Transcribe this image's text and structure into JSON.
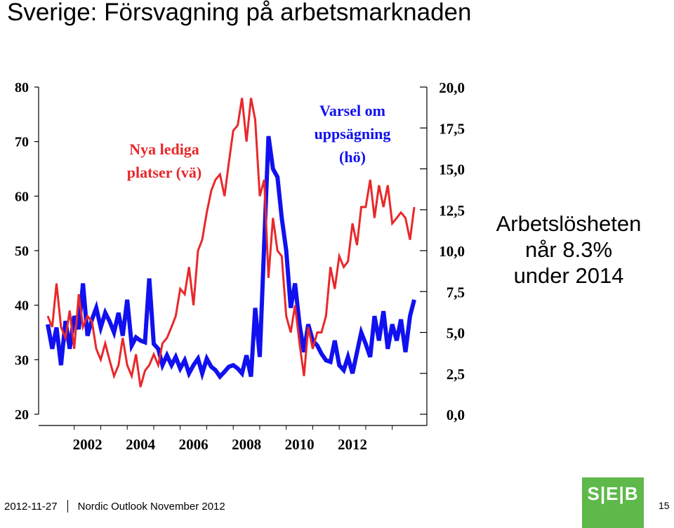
{
  "header": {
    "title": "Sverige: Försvagning på arbetsmarknaden"
  },
  "annotation": {
    "line1": "Arbetslösheten",
    "line2": "når 8.3%",
    "line3": "under 2014"
  },
  "footer": {
    "date": "2012-11-27",
    "publication": "Nordic Outlook November 2012",
    "page": "15"
  },
  "logo": {
    "text": "S|E|B"
  },
  "colors": {
    "lediga": "#e8282b",
    "varsel": "#1010f0",
    "brand": "#5eb94a"
  },
  "chart_data": {
    "type": "line",
    "x_tick_labels": [
      "2002",
      "2004",
      "2006",
      "2008",
      "2010",
      "2012"
    ],
    "left_axis": {
      "ylim": [
        20,
        80
      ],
      "ticks": [
        "20",
        "30",
        "40",
        "50",
        "60",
        "70",
        "80"
      ]
    },
    "right_axis": {
      "ylim": [
        0,
        20
      ],
      "ticks": [
        "0,0",
        "2,5",
        "5,0",
        "7,5",
        "10,0",
        "12,5",
        "15,0",
        "17,5",
        "20,0"
      ]
    },
    "series": [
      {
        "name": "Nya lediga platser (vä)",
        "label_line1": "Nya lediga",
        "label_line2": "platser (vä)",
        "axis": "left",
        "color": "#e8282b",
        "points": [
          [
            2001.0,
            38
          ],
          [
            2001.17,
            36
          ],
          [
            2001.33,
            44
          ],
          [
            2001.5,
            36
          ],
          [
            2001.67,
            34
          ],
          [
            2001.83,
            39
          ],
          [
            2002.0,
            32
          ],
          [
            2002.17,
            42
          ],
          [
            2002.33,
            36
          ],
          [
            2002.5,
            38
          ],
          [
            2002.67,
            37
          ],
          [
            2002.83,
            32
          ],
          [
            2003.0,
            30
          ],
          [
            2003.17,
            33
          ],
          [
            2003.33,
            30
          ],
          [
            2003.5,
            27
          ],
          [
            2003.67,
            29
          ],
          [
            2003.83,
            34
          ],
          [
            2004.0,
            29
          ],
          [
            2004.17,
            27
          ],
          [
            2004.33,
            31
          ],
          [
            2004.5,
            25
          ],
          [
            2004.67,
            28
          ],
          [
            2004.83,
            29
          ],
          [
            2005.0,
            31
          ],
          [
            2005.17,
            29
          ],
          [
            2005.33,
            33
          ],
          [
            2005.5,
            34
          ],
          [
            2005.67,
            36
          ],
          [
            2005.83,
            38
          ],
          [
            2006.0,
            43
          ],
          [
            2006.17,
            42
          ],
          [
            2006.33,
            47
          ],
          [
            2006.5,
            40
          ],
          [
            2006.67,
            50
          ],
          [
            2006.83,
            52
          ],
          [
            2007.0,
            57
          ],
          [
            2007.17,
            61
          ],
          [
            2007.33,
            63
          ],
          [
            2007.5,
            64
          ],
          [
            2007.67,
            60
          ],
          [
            2007.83,
            66
          ],
          [
            2008.0,
            72
          ],
          [
            2008.17,
            73
          ],
          [
            2008.33,
            78
          ],
          [
            2008.5,
            70
          ],
          [
            2008.67,
            78
          ],
          [
            2008.83,
            74
          ],
          [
            2009.0,
            60
          ],
          [
            2009.17,
            63
          ],
          [
            2009.33,
            45
          ],
          [
            2009.5,
            56
          ],
          [
            2009.67,
            50
          ],
          [
            2009.83,
            49
          ],
          [
            2010.0,
            38
          ],
          [
            2010.17,
            35
          ],
          [
            2010.33,
            40
          ],
          [
            2010.5,
            33
          ],
          [
            2010.67,
            27
          ],
          [
            2010.83,
            36
          ],
          [
            2011.0,
            32
          ],
          [
            2011.17,
            35
          ],
          [
            2011.33,
            35
          ],
          [
            2011.5,
            38
          ],
          [
            2011.67,
            47
          ],
          [
            2011.83,
            43
          ],
          [
            2012.0,
            49
          ],
          [
            2012.17,
            47
          ],
          [
            2012.33,
            48
          ],
          [
            2012.5,
            55
          ],
          [
            2012.67,
            51
          ],
          [
            2012.83,
            58
          ],
          [
            2013.0,
            58
          ],
          [
            2013.17,
            63
          ],
          [
            2013.33,
            56
          ],
          [
            2013.5,
            62
          ],
          [
            2013.67,
            58
          ],
          [
            2013.83,
            62
          ],
          [
            2014.0,
            55
          ],
          [
            2014.17,
            56
          ],
          [
            2014.33,
            57
          ],
          [
            2014.5,
            56
          ],
          [
            2014.67,
            52
          ],
          [
            2014.83,
            58
          ]
        ]
      },
      {
        "name": "Varsel om uppsägning (hö)",
        "label_line1": "Varsel om",
        "label_line2": "uppsägning",
        "label_line3": "(hö)",
        "axis": "right",
        "color": "#1010f0",
        "points": [
          [
            2001.0,
            5.5
          ],
          [
            2001.17,
            4.0
          ],
          [
            2001.33,
            5.3
          ],
          [
            2001.5,
            3.0
          ],
          [
            2001.67,
            5.7
          ],
          [
            2001.83,
            4.0
          ],
          [
            2002.0,
            6.0
          ],
          [
            2002.17,
            5.2
          ],
          [
            2002.33,
            8.0
          ],
          [
            2002.5,
            4.8
          ],
          [
            2002.67,
            5.8
          ],
          [
            2002.83,
            6.5
          ],
          [
            2003.0,
            5.3
          ],
          [
            2003.17,
            6.2
          ],
          [
            2003.33,
            5.7
          ],
          [
            2003.5,
            5.0
          ],
          [
            2003.67,
            6.2
          ],
          [
            2003.83,
            4.8
          ],
          [
            2004.0,
            7.0
          ],
          [
            2004.17,
            4.2
          ],
          [
            2004.33,
            4.7
          ],
          [
            2004.5,
            4.5
          ],
          [
            2004.67,
            4.4
          ],
          [
            2004.83,
            8.3
          ],
          [
            2005.0,
            4.3
          ],
          [
            2005.17,
            4.0
          ],
          [
            2005.33,
            3.0
          ],
          [
            2005.5,
            3.6
          ],
          [
            2005.67,
            3.0
          ],
          [
            2005.83,
            3.5
          ],
          [
            2006.0,
            2.8
          ],
          [
            2006.17,
            3.3
          ],
          [
            2006.33,
            2.5
          ],
          [
            2006.5,
            3.0
          ],
          [
            2006.67,
            3.4
          ],
          [
            2006.83,
            2.5
          ],
          [
            2007.0,
            3.4
          ],
          [
            2007.17,
            2.9
          ],
          [
            2007.33,
            2.7
          ],
          [
            2007.5,
            2.3
          ],
          [
            2007.67,
            2.6
          ],
          [
            2007.83,
            2.9
          ],
          [
            2008.0,
            3.0
          ],
          [
            2008.17,
            2.8
          ],
          [
            2008.33,
            2.5
          ],
          [
            2008.5,
            3.6
          ],
          [
            2008.67,
            2.3
          ],
          [
            2008.83,
            6.5
          ],
          [
            2009.0,
            3.5
          ],
          [
            2009.17,
            10.5
          ],
          [
            2009.33,
            17.0
          ],
          [
            2009.5,
            15.0
          ],
          [
            2009.67,
            14.5
          ],
          [
            2009.83,
            12.0
          ],
          [
            2010.0,
            10.0
          ],
          [
            2010.17,
            6.5
          ],
          [
            2010.33,
            8.0
          ],
          [
            2010.5,
            5.5
          ],
          [
            2010.67,
            3.8
          ],
          [
            2010.83,
            5.5
          ],
          [
            2011.0,
            4.5
          ],
          [
            2011.17,
            4.2
          ],
          [
            2011.33,
            3.7
          ],
          [
            2011.5,
            3.3
          ],
          [
            2011.67,
            3.2
          ],
          [
            2011.83,
            4.5
          ],
          [
            2012.0,
            3.0
          ],
          [
            2012.17,
            2.7
          ],
          [
            2012.33,
            3.5
          ],
          [
            2012.5,
            2.5
          ],
          [
            2012.67,
            3.8
          ],
          [
            2012.83,
            5.0
          ],
          [
            2013.0,
            4.3
          ],
          [
            2013.17,
            3.5
          ],
          [
            2013.33,
            6.0
          ],
          [
            2013.5,
            4.5
          ],
          [
            2013.67,
            6.3
          ],
          [
            2013.83,
            4.0
          ],
          [
            2014.0,
            5.5
          ],
          [
            2014.17,
            4.5
          ],
          [
            2014.33,
            5.8
          ],
          [
            2014.5,
            3.8
          ],
          [
            2014.67,
            6.0
          ],
          [
            2014.83,
            7.0
          ]
        ]
      }
    ]
  }
}
